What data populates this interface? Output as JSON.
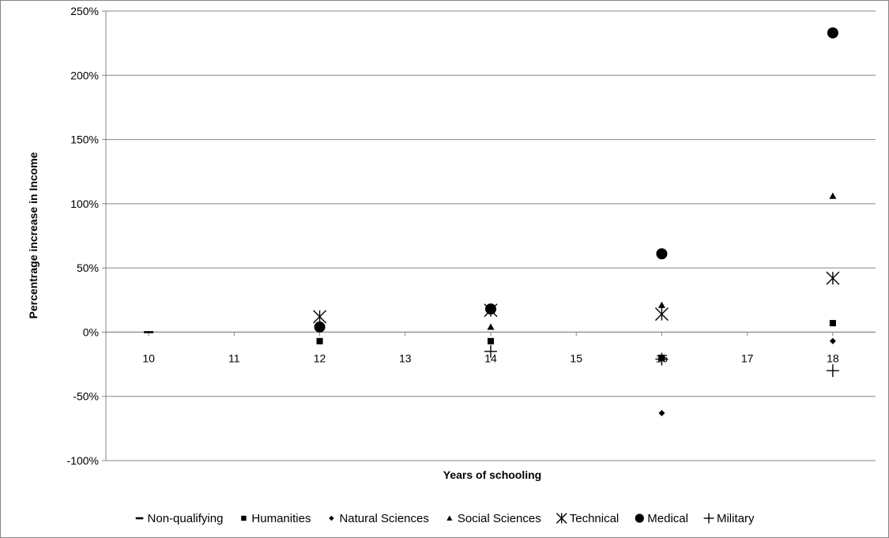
{
  "chart_data": {
    "type": "scatter",
    "title": "",
    "xlabel": "Years of schooling",
    "ylabel": "Percentrage increase in Income",
    "xlim": [
      9.5,
      18.5
    ],
    "ylim": [
      -1.0,
      2.5
    ],
    "y_format": "percent",
    "x_ticks": [
      10,
      11,
      12,
      13,
      14,
      15,
      16,
      17,
      18
    ],
    "x_tick_labels": [
      "10",
      "11",
      "12",
      "13",
      "14",
      "15",
      "16",
      "17",
      "18"
    ],
    "y_ticks": [
      -1.0,
      -0.5,
      0,
      0.5,
      1.0,
      1.5,
      2.0,
      2.5
    ],
    "y_tick_labels": [
      "-100%",
      "-50%",
      "0%",
      "50%",
      "100%",
      "150%",
      "200%",
      "250%"
    ],
    "grid": "horizontal",
    "legend_position": "bottom",
    "series": [
      {
        "name": "Non-qualifying",
        "marker": "dash",
        "points": [
          {
            "x": 10,
            "y": 0.0
          }
        ]
      },
      {
        "name": "Humanities",
        "marker": "square",
        "points": [
          {
            "x": 12,
            "y": -0.07
          },
          {
            "x": 14,
            "y": -0.07
          },
          {
            "x": 16,
            "y": -0.2
          },
          {
            "x": 18,
            "y": 0.07
          }
        ]
      },
      {
        "name": "Natural Sciences",
        "marker": "diamond",
        "points": [
          {
            "x": 12,
            "y": 0.03
          },
          {
            "x": 14,
            "y": 0.17
          },
          {
            "x": 16,
            "y": -0.63
          },
          {
            "x": 18,
            "y": -0.07
          }
        ]
      },
      {
        "name": "Social Sciences",
        "marker": "triangle",
        "points": [
          {
            "x": 12,
            "y": 0.04
          },
          {
            "x": 14,
            "y": 0.04
          },
          {
            "x": 16,
            "y": 0.21
          },
          {
            "x": 18,
            "y": 1.06
          }
        ]
      },
      {
        "name": "Technical",
        "marker": "asterisk",
        "points": [
          {
            "x": 12,
            "y": 0.12
          },
          {
            "x": 14,
            "y": 0.17
          },
          {
            "x": 16,
            "y": 0.14
          },
          {
            "x": 18,
            "y": 0.42
          }
        ]
      },
      {
        "name": "Medical",
        "marker": "circle",
        "points": [
          {
            "x": 12,
            "y": 0.04
          },
          {
            "x": 14,
            "y": 0.18
          },
          {
            "x": 16,
            "y": 0.61
          },
          {
            "x": 18,
            "y": 2.33
          }
        ]
      },
      {
        "name": "Military",
        "marker": "plus",
        "points": [
          {
            "x": 14,
            "y": -0.15
          },
          {
            "x": 16,
            "y": -0.21
          },
          {
            "x": 18,
            "y": -0.3
          }
        ]
      }
    ]
  }
}
